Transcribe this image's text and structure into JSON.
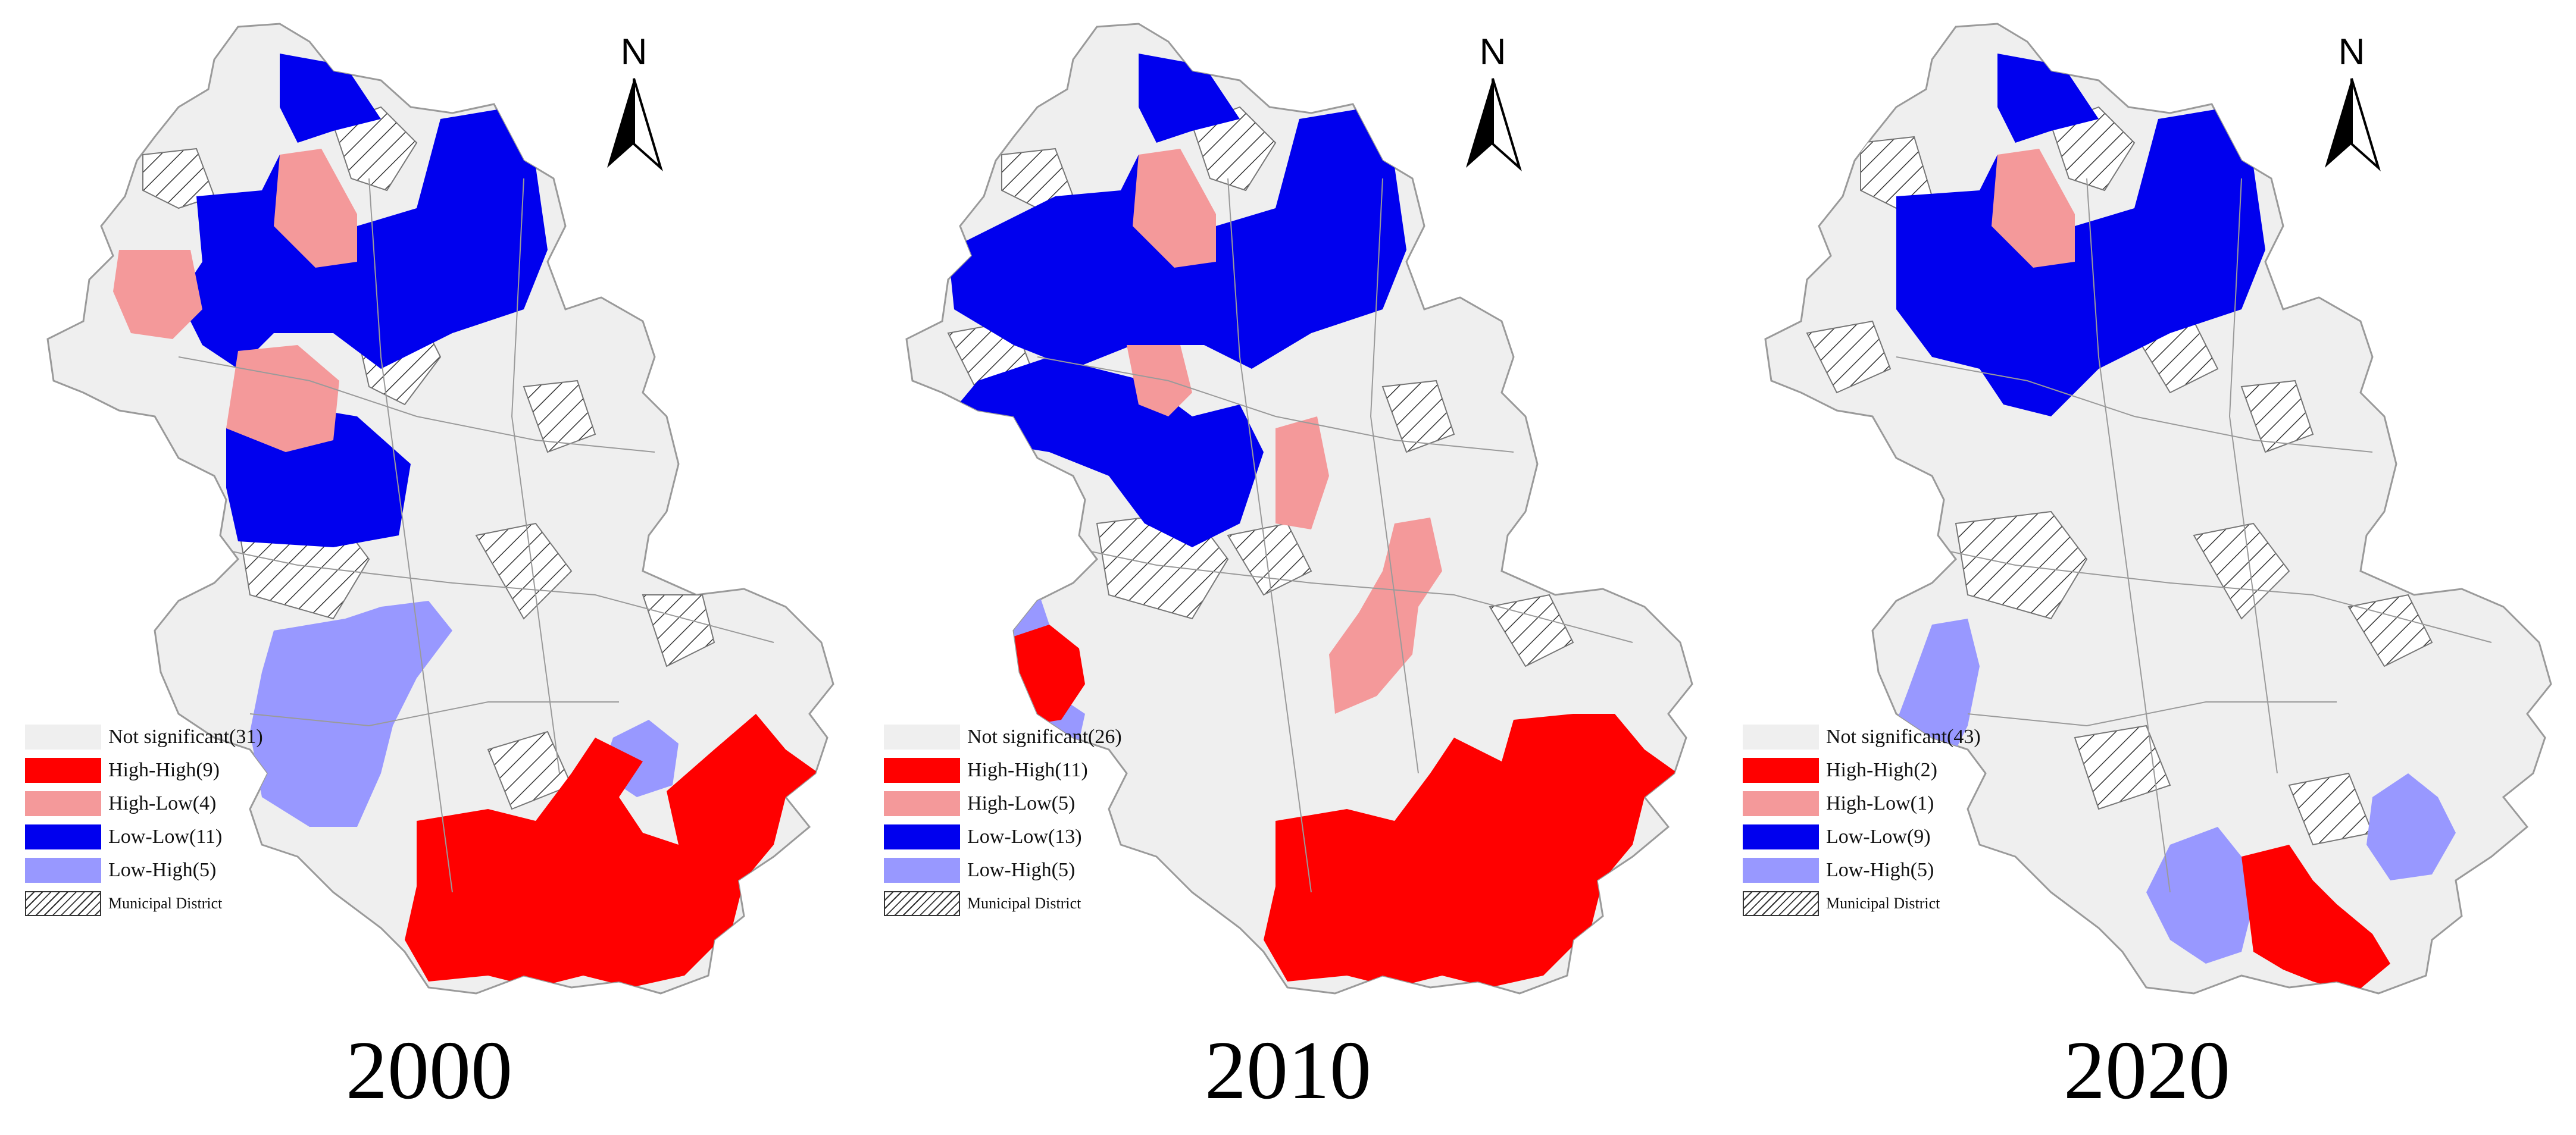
{
  "colors": {
    "not_significant": "#efefef",
    "high_high": "#ff0000",
    "high_low": "#f4999a",
    "low_low": "#0000ee",
    "low_high": "#9898ff",
    "boundary": "#9a9a9a"
  },
  "north_arrow": {
    "label": "N"
  },
  "panels": [
    {
      "year": "2000",
      "legend": [
        {
          "category": "not_significant",
          "label": "Not significant(31)"
        },
        {
          "category": "high_high",
          "label": "High-High(9)"
        },
        {
          "category": "high_low",
          "label": "High-Low(4)"
        },
        {
          "category": "low_low",
          "label": "Low-Low(11)"
        },
        {
          "category": "low_high",
          "label": "Low-High(5)"
        },
        {
          "category": "municipal_district",
          "label": "Municipal District"
        }
      ]
    },
    {
      "year": "2010",
      "legend": [
        {
          "category": "not_significant",
          "label": "Not significant(26)"
        },
        {
          "category": "high_high",
          "label": "High-High(11)"
        },
        {
          "category": "high_low",
          "label": "High-Low(5)"
        },
        {
          "category": "low_low",
          "label": "Low-Low(13)"
        },
        {
          "category": "low_high",
          "label": "Low-High(5)"
        },
        {
          "category": "municipal_district",
          "label": "Municipal District"
        }
      ]
    },
    {
      "year": "2020",
      "legend": [
        {
          "category": "not_significant",
          "label": "Not significant(43)"
        },
        {
          "category": "high_high",
          "label": "High-High(2)"
        },
        {
          "category": "high_low",
          "label": "High-Low(1)"
        },
        {
          "category": "low_low",
          "label": "Low-Low(9)"
        },
        {
          "category": "low_high",
          "label": "Low-High(5)"
        },
        {
          "category": "municipal_district",
          "label": "Municipal District"
        }
      ]
    }
  ]
}
